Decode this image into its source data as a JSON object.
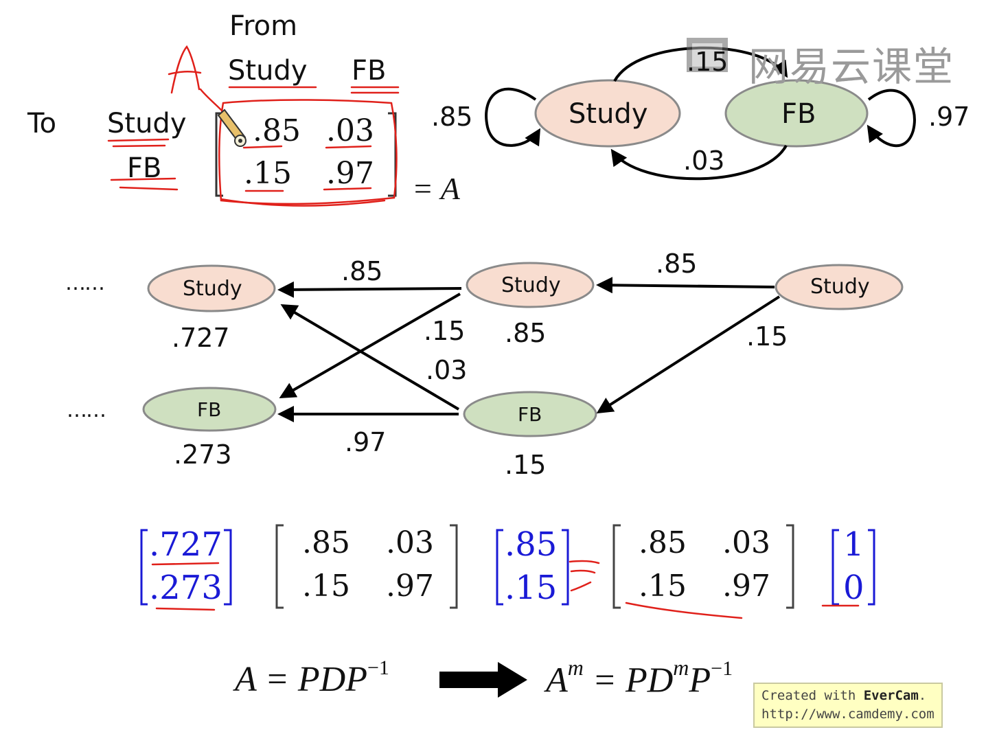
{
  "matrix_top": {
    "from_label": "From",
    "col_study": "Study",
    "col_fb": "FB",
    "to_label": "To",
    "row_study": "Study",
    "row_fb": "FB",
    "cells": [
      [
        ".85",
        ".03"
      ],
      [
        ".15",
        ".97"
      ]
    ],
    "equals": "= A",
    "annotation": "A"
  },
  "state_diagram": {
    "study": "Study",
    "fb": "FB",
    "self_study": ".85",
    "self_fb": ".97",
    "study_to_fb": ".15",
    "fb_to_study": ".03"
  },
  "trellis": {
    "ellipsis": "……",
    "nodes": [
      "Study",
      "FB",
      "Study",
      "FB",
      "Study"
    ],
    "prob_study_2": ".727",
    "prob_fb_2": ".273",
    "prob_study_1": ".85",
    "prob_fb_1": ".15",
    "edge_ss_1": ".85",
    "edge_sf_1": ".15",
    "edge_fs_1": ".03",
    "edge_ff_1": ".97",
    "edge_ss_0": ".85",
    "edge_sf_0": ".15"
  },
  "equation_row": {
    "v1": [
      ".727",
      ".273"
    ],
    "m1": [
      ".85",
      ".03",
      ".15",
      ".97"
    ],
    "v2": [
      ".85",
      ".15"
    ],
    "m2": [
      ".85",
      ".03",
      ".15",
      ".97"
    ],
    "v3": [
      "1",
      "0"
    ]
  },
  "formula": {
    "left": "A = PDP",
    "left_exp": "−1",
    "right_a": "A",
    "right_a_exp": "m",
    "right_mid": " = PD",
    "right_mid_exp": "m",
    "right_p": "P",
    "right_p_exp": "−1"
  },
  "watermark": "网易云课堂",
  "evercam": {
    "line1_prefix": "Created with ",
    "line1_brand": "EverCam",
    "line1_suffix": ".",
    "line2": "http://www.camdemy.com"
  },
  "colors": {
    "study_fill": "#f8ddd0",
    "fb_fill": "#cfe0c0",
    "node_stroke": "#8a8a8a",
    "blue": "#1a1ad6",
    "pen_red": "#e0201a"
  }
}
